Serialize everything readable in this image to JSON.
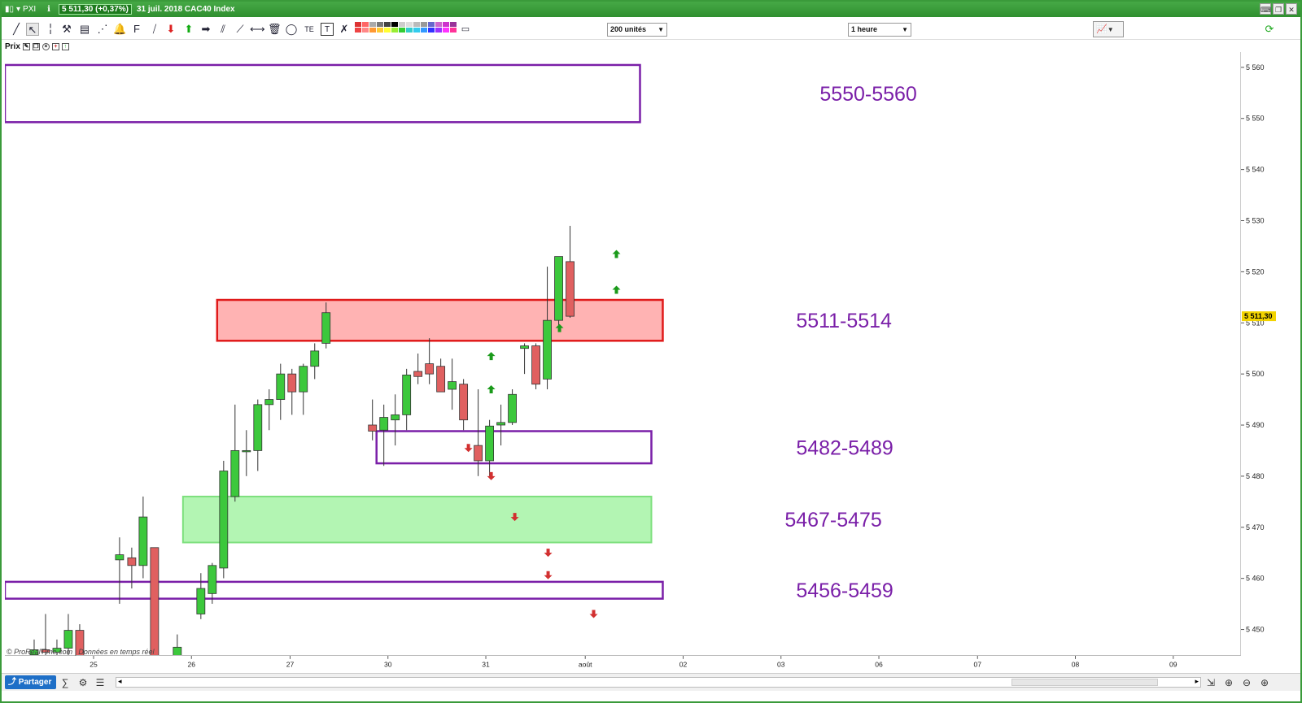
{
  "titlebar": {
    "symbol": "PXI",
    "price_change": "5 511,30 (+0,37%)",
    "title": "31 juil. 2018 CAC40 Index"
  },
  "toolbar": {
    "units_select": "200 unités",
    "timeframe_select": "1 heure"
  },
  "subbar": {
    "label": "Prix"
  },
  "bottombar": {
    "share_label": "Partager"
  },
  "footer_note": "© ProRealTime.com | Données en temps réel",
  "chart_data": {
    "type": "candlestick",
    "title": "",
    "ylim": [
      5445,
      5563
    ],
    "y_ticks": [
      5450,
      5460,
      5470,
      5480,
      5490,
      5500,
      5510,
      5520,
      5530,
      5540,
      5550,
      5560
    ],
    "y_tick_labels": [
      "5 450",
      "5 460",
      "5 470",
      "5 480",
      "5 490",
      "5 500",
      "5 510",
      "5 520",
      "5 530",
      "5 540",
      "5 550",
      "5 560"
    ],
    "last_price_label": "5 511,30",
    "last_price": 5511.3,
    "x_labels": [
      "25",
      "26",
      "27",
      "30",
      "31",
      "août",
      "02",
      "03",
      "06",
      "07",
      "08",
      "09"
    ],
    "up_color": "#3cc83c",
    "down_color": "#e06060",
    "candles": [
      {
        "o": 5445.0,
        "h": 5448,
        "l": 5440,
        "c": 5446.0
      },
      {
        "o": 5446.0,
        "h": 5453,
        "l": 5441,
        "c": 5445.5
      },
      {
        "o": 5445.5,
        "h": 5448,
        "l": 5441,
        "c": 5446.3
      },
      {
        "o": 5446.3,
        "h": 5453,
        "l": 5444,
        "c": 5449.8
      },
      {
        "o": 5449.8,
        "h": 5451,
        "l": 5440,
        "c": 5442.0
      },
      {
        "o": 5463.6,
        "h": 5468,
        "l": 5455,
        "c": 5464.6
      },
      {
        "o": 5464.0,
        "h": 5466,
        "l": 5458,
        "c": 5462.5
      },
      {
        "o": 5462.5,
        "h": 5476,
        "l": 5460,
        "c": 5472.0
      },
      {
        "o": 5466.0,
        "h": 5466,
        "l": 5440,
        "c": 5442.0
      },
      {
        "o": 5442.0,
        "h": 5444,
        "l": 5438,
        "c": 5443.0
      },
      {
        "o": 5443.0,
        "h": 5449,
        "l": 5441,
        "c": 5446.5
      },
      {
        "o": 5453.0,
        "h": 5461,
        "l": 5452,
        "c": 5458.0
      },
      {
        "o": 5457.0,
        "h": 5463,
        "l": 5455,
        "c": 5462.5
      },
      {
        "o": 5462.0,
        "h": 5483,
        "l": 5460,
        "c": 5481.0
      },
      {
        "o": 5476.0,
        "h": 5494,
        "l": 5475,
        "c": 5485.0
      },
      {
        "o": 5484.8,
        "h": 5489,
        "l": 5480,
        "c": 5485.0
      },
      {
        "o": 5485.0,
        "h": 5495,
        "l": 5481,
        "c": 5494.0
      },
      {
        "o": 5494.0,
        "h": 5497,
        "l": 5489,
        "c": 5495.0
      },
      {
        "o": 5495.0,
        "h": 5502,
        "l": 5491,
        "c": 5500.0
      },
      {
        "o": 5500.0,
        "h": 5501,
        "l": 5492,
        "c": 5496.5
      },
      {
        "o": 5496.5,
        "h": 5502,
        "l": 5492,
        "c": 5501.5
      },
      {
        "o": 5501.5,
        "h": 5506,
        "l": 5499,
        "c": 5504.5
      },
      {
        "o": 5506.0,
        "h": 5514,
        "l": 5505,
        "c": 5512.0
      },
      {
        "o": 5490.0,
        "h": 5495,
        "l": 5487,
        "c": 5488.8
      },
      {
        "o": 5489.0,
        "h": 5494,
        "l": 5482,
        "c": 5491.5
      },
      {
        "o": 5491.0,
        "h": 5496,
        "l": 5486,
        "c": 5492.0
      },
      {
        "o": 5492.0,
        "h": 5501,
        "l": 5489,
        "c": 5499.8
      },
      {
        "o": 5500.5,
        "h": 5504,
        "l": 5498,
        "c": 5499.5
      },
      {
        "o": 5502.0,
        "h": 5507,
        "l": 5498,
        "c": 5500.0
      },
      {
        "o": 5501.5,
        "h": 5503,
        "l": 5497,
        "c": 5496.5
      },
      {
        "o": 5497.0,
        "h": 5503,
        "l": 5493,
        "c": 5498.5
      },
      {
        "o": 5498.0,
        "h": 5499,
        "l": 5489,
        "c": 5491.0
      },
      {
        "o": 5486.0,
        "h": 5497,
        "l": 5480,
        "c": 5483.0
      },
      {
        "o": 5483.0,
        "h": 5491,
        "l": 5480,
        "c": 5489.8
      },
      {
        "o": 5490.0,
        "h": 5494,
        "l": 5486,
        "c": 5490.5
      },
      {
        "o": 5490.5,
        "h": 5497,
        "l": 5490,
        "c": 5496.0
      },
      {
        "o": 5505.0,
        "h": 5506,
        "l": 5500,
        "c": 5505.5
      },
      {
        "o": 5505.5,
        "h": 5506,
        "l": 5497,
        "c": 5498.0
      },
      {
        "o": 5499.0,
        "h": 5521,
        "l": 5497,
        "c": 5510.5
      },
      {
        "o": 5510.5,
        "h": 5523,
        "l": 5509,
        "c": 5523.0
      },
      {
        "o": 5522.0,
        "h": 5529,
        "l": 5511,
        "c": 5511.3
      }
    ],
    "zones": [
      {
        "label": "5550-5560",
        "low": 5549.3,
        "high": 5560.5,
        "style": "purple-outline"
      },
      {
        "label": "5511-5514",
        "low": 5506.5,
        "high": 5514.5,
        "style": "red-fill"
      },
      {
        "label": "5482-5489",
        "low": 5482.5,
        "high": 5488.8,
        "style": "purple-outline"
      },
      {
        "label": "5467-5475",
        "low": 5467.0,
        "high": 5476.0,
        "style": "green-fill"
      },
      {
        "label": "5456-5459",
        "low": 5456.0,
        "high": 5459.3,
        "style": "purple-outline"
      }
    ],
    "signals": [
      {
        "dir": "up",
        "price": 5523.5
      },
      {
        "dir": "up",
        "price": 5516.5
      },
      {
        "dir": "up",
        "price": 5503.5
      },
      {
        "dir": "up",
        "price": 5497.0
      },
      {
        "dir": "up",
        "price": 5509.0
      },
      {
        "dir": "down",
        "price": 5485.5
      },
      {
        "dir": "down",
        "price": 5480.0
      },
      {
        "dir": "down",
        "price": 5472.0
      },
      {
        "dir": "down",
        "price": 5465.0
      },
      {
        "dir": "down",
        "price": 5460.6
      },
      {
        "dir": "down",
        "price": 5453.0
      }
    ]
  }
}
